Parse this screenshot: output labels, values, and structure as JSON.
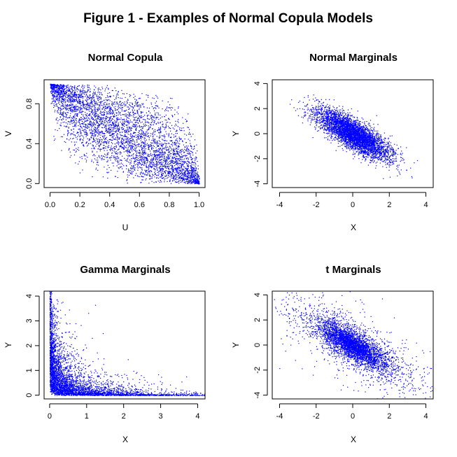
{
  "figure": {
    "title": "Figure 1 - Examples of Normal Copula Models"
  },
  "chart_data": [
    {
      "type": "scatter",
      "title": "Normal Copula",
      "xlabel": "U",
      "ylabel": "V",
      "xlim": [
        -0.04,
        1.04
      ],
      "ylim": [
        -0.04,
        1.04
      ],
      "xticks": [
        0.0,
        0.2,
        0.4,
        0.6,
        0.8,
        1.0
      ],
      "xtick_labels": [
        "0.0",
        "0.2",
        "0.4",
        "0.6",
        "0.8",
        "1.0"
      ],
      "yticks": [
        0.0,
        0.4,
        0.8
      ],
      "ytick_labels": [
        "0.0",
        "0.4",
        "0.8"
      ],
      "color": "#0000ff",
      "distribution": "normal copula uniform marginals",
      "correlation": -0.8,
      "n_points": 4500
    },
    {
      "type": "scatter",
      "title": "Normal Marginals",
      "xlabel": "X",
      "ylabel": "Y",
      "xlim": [
        -4.4,
        4.4
      ],
      "ylim": [
        -4.3,
        4.3
      ],
      "xticks": [
        -4,
        -2,
        0,
        2,
        4
      ],
      "xtick_labels": [
        "-4",
        "-2",
        "0",
        "2",
        "4"
      ],
      "yticks": [
        -4,
        -2,
        0,
        2,
        4
      ],
      "ytick_labels": [
        "-4",
        "-2",
        "0",
        "2",
        "4"
      ],
      "color": "#0000ff",
      "distribution": "bivariate normal",
      "correlation": -0.8,
      "n_points": 4500
    },
    {
      "type": "scatter",
      "title": "Gamma Marginals",
      "xlabel": "X",
      "ylabel": "Y",
      "xlim": [
        -0.15,
        4.2
      ],
      "ylim": [
        -0.15,
        4.2
      ],
      "xticks": [
        0,
        1,
        2,
        3,
        4
      ],
      "xtick_labels": [
        "0",
        "1",
        "2",
        "3",
        "4"
      ],
      "yticks": [
        0,
        1,
        2,
        3,
        4
      ],
      "ytick_labels": [
        "0",
        "1",
        "2",
        "3",
        "4"
      ],
      "color": "#0000ff",
      "distribution": "gamma marginals",
      "correlation": -0.8,
      "n_points": 4500
    },
    {
      "type": "scatter",
      "title": "t Marginals",
      "xlabel": "X",
      "ylabel": "Y",
      "xlim": [
        -4.4,
        4.4
      ],
      "ylim": [
        -4.3,
        4.3
      ],
      "xticks": [
        -4,
        -2,
        0,
        2,
        4
      ],
      "xtick_labels": [
        "-4",
        "-2",
        "0",
        "2",
        "4"
      ],
      "yticks": [
        -4,
        -2,
        0,
        2,
        4
      ],
      "ytick_labels": [
        "-4",
        "-2",
        "0",
        "2",
        "4"
      ],
      "color": "#0000ff",
      "distribution": "t marginals",
      "correlation": -0.8,
      "n_points": 4500
    }
  ]
}
